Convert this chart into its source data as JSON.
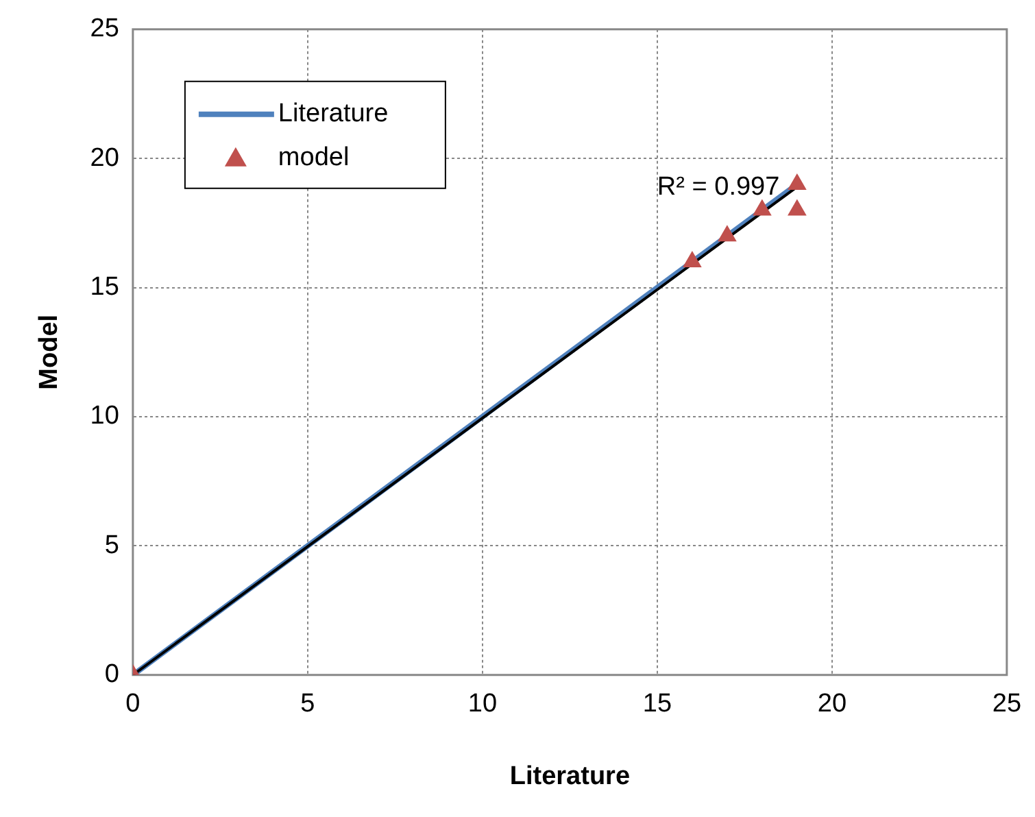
{
  "chart_data": {
    "type": "scatter",
    "xlabel": "Literature",
    "ylabel": "Model",
    "xlim": [
      0,
      25
    ],
    "ylim": [
      0,
      25
    ],
    "xticks": [
      0,
      5,
      10,
      15,
      20,
      25
    ],
    "yticks": [
      0,
      5,
      10,
      15,
      20,
      25
    ],
    "grid": true,
    "legend": "top left",
    "series": [
      {
        "name": "Literature",
        "type": "line",
        "color": "#4f81bd",
        "x": [
          0,
          19
        ],
        "values": [
          0,
          19
        ],
        "marker": "none"
      },
      {
        "name": "model",
        "type": "scatter",
        "color": "#c0504d",
        "x": [
          0,
          16,
          17,
          18,
          19,
          19
        ],
        "values": [
          0,
          16,
          17,
          18,
          19,
          18
        ],
        "marker": "triangle"
      },
      {
        "type": "line",
        "color": "#000000",
        "x": [
          0,
          19
        ],
        "values": [
          0,
          18.9
        ],
        "marker": "none"
      }
    ],
    "annotations": [
      "R² = 0.997"
    ]
  }
}
